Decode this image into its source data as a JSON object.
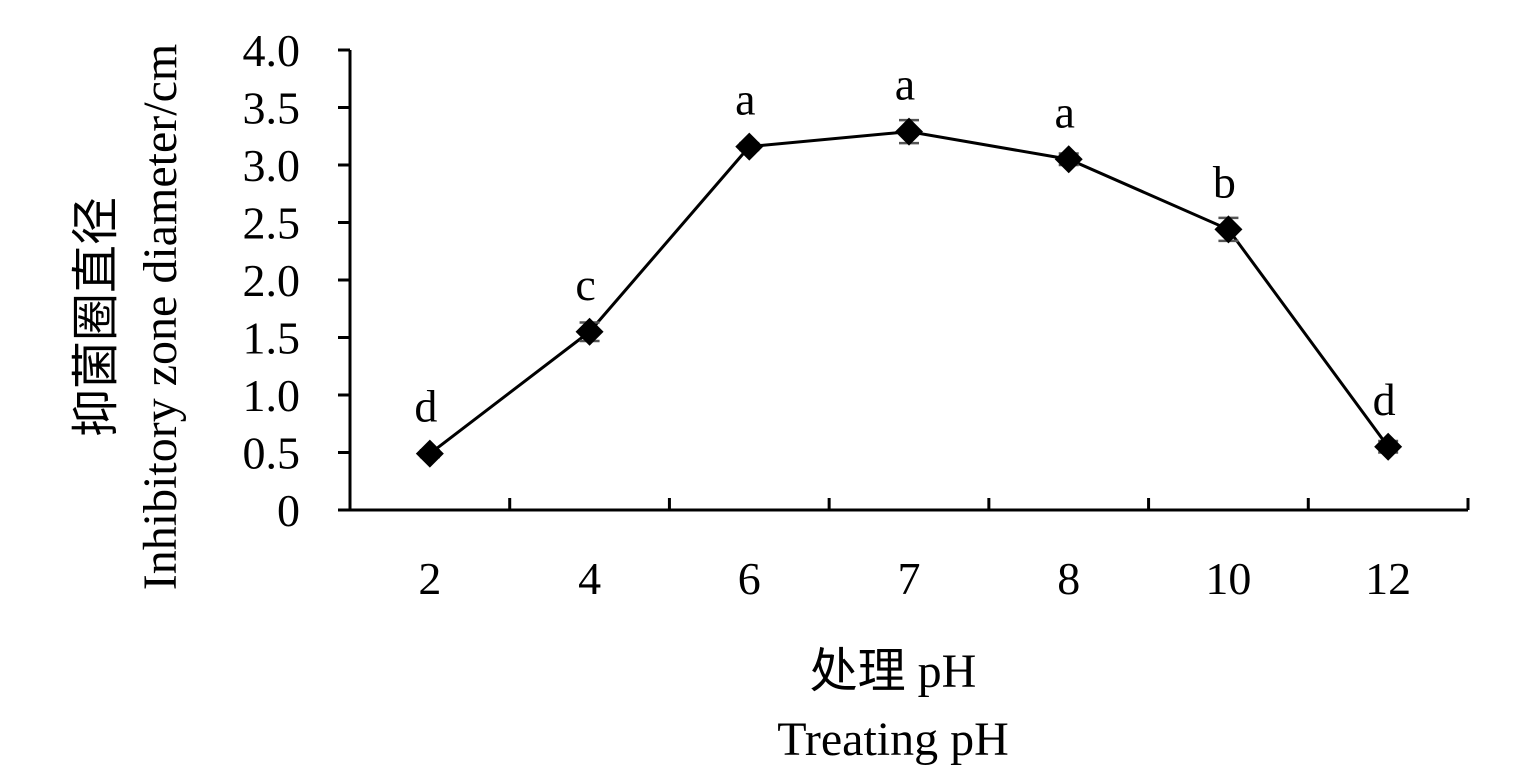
{
  "chart_data": {
    "type": "line",
    "categories": [
      "2",
      "4",
      "6",
      "7",
      "8",
      "10",
      "12"
    ],
    "series": [
      {
        "values": [
          0.49,
          1.55,
          3.16,
          3.29,
          3.05,
          2.44,
          0.55
        ],
        "errors": [
          0.03,
          0.08,
          0.03,
          0.1,
          0.05,
          0.1,
          0.05
        ],
        "labels": [
          "d",
          "c",
          "a",
          "a",
          "a",
          "b",
          "d"
        ],
        "color": "#000000",
        "marker": "diamond"
      }
    ],
    "yticks": [
      "0",
      "0.5",
      "1.0",
      "1.5",
      "2.0",
      "2.5",
      "3.0",
      "3.5",
      "4.0"
    ],
    "ylim": [
      0,
      4.0
    ],
    "ylabel_lines": [
      "抑菌圈直径",
      "Inhibitory zone diameter/cm"
    ],
    "xlabel_lines": [
      "处理 pH",
      "Treating pH"
    ],
    "grid": false,
    "legend": "none"
  }
}
